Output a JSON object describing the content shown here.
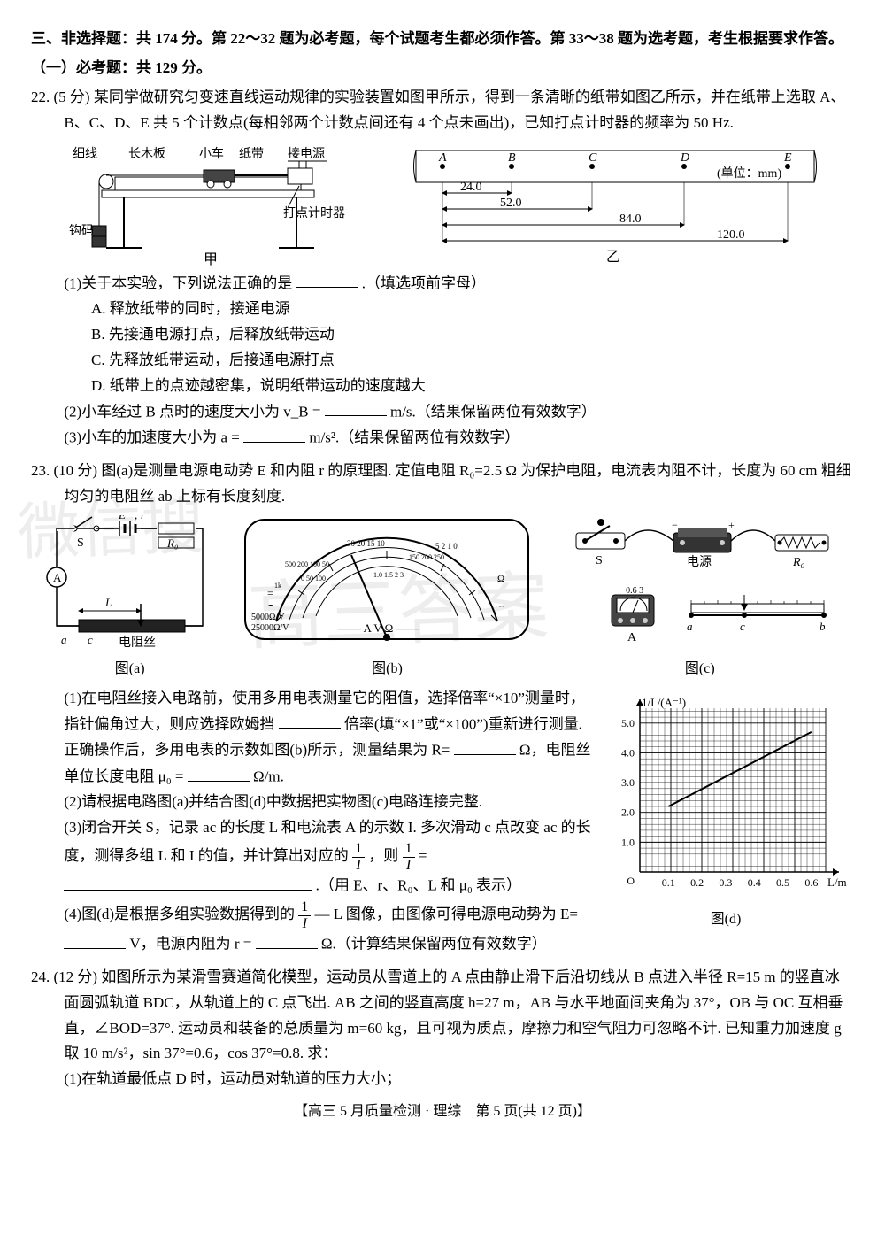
{
  "header": {
    "part3": "三、非选择题：共 174 分。第 22～32 题为必考题，每个试题考生都必须作答。第 33～38 题为选考题，考生根据要求作答。",
    "sub1": "（一）必考题：共 129 分。"
  },
  "q22": {
    "num": "22.",
    "score": "(5 分)",
    "stem": "某同学做研究匀变速直线运动规律的实验装置如图甲所示，得到一条清晰的纸带如图乙所示，并在纸带上选取 A、B、C、D、E 共 5 个计数点(每相邻两个计数点间还有 4 个点未画出)，已知打点计时器的频率为 50 Hz.",
    "fig1_labels": {
      "xixian": "细线",
      "changmuban": "长木板",
      "xiaoche": "小车",
      "zhidai": "纸带",
      "jiedianyuan": "接电源",
      "gouma": "钩码",
      "dadianjishiqi": "打点计时器",
      "jia": "甲"
    },
    "fig2": {
      "points": [
        "A",
        "B",
        "C",
        "D",
        "E"
      ],
      "unit": "(单位：mm)",
      "d1": "24.0",
      "d2": "52.0",
      "d3": "84.0",
      "d4": "120.0",
      "label": "乙"
    },
    "p1": "(1)关于本实验，下列说法正确的是",
    "p1_tail": ".（填选项前字母）",
    "optA": "A. 释放纸带的同时，接通电源",
    "optB": "B. 先接通电源打点，后释放纸带运动",
    "optC": "C. 先释放纸带运动，后接通电源打点",
    "optD": "D. 纸带上的点迹越密集，说明纸带运动的速度越大",
    "p2a": "(2)小车经过 B 点时的速度大小为 v_B =",
    "p2b": "m/s.（结果保留两位有效数字）",
    "p3a": "(3)小车的加速度大小为 a =",
    "p3b": "m/s².（结果保留两位有效数字）"
  },
  "q23": {
    "num": "23.",
    "score": "(10 分)",
    "stem": "图(a)是测量电源电动势 E 和内阻 r 的原理图. 定值电阻 R₀=2.5 Ω 为保护电阻，电流表内阻不计，长度为 60 cm 粗细均匀的电阻丝 ab 上标有长度刻度.",
    "figA": {
      "S": "S",
      "E": "E",
      "r": "r",
      "R0": "R₀",
      "A": "A",
      "L": "L",
      "a": "a",
      "c": "c",
      "dianzusi": "电阻丝",
      "label": "图(a)"
    },
    "figB": {
      "label": "图(b)",
      "unit_top": "5000Ω/V",
      "unit_bot": "25000Ω/V",
      "scales_text": "——  A  V  Ω  ——"
    },
    "figC": {
      "S": "S",
      "dianyuan": "电源",
      "R0": "R₀",
      "A": "A",
      "a": "a",
      "c": "c",
      "b": "b",
      "label": "图(c)"
    },
    "p1a": "(1)在电阻丝接入电路前，使用多用电表测量它的阻值，选择倍率“×10”测量时，指针偏角过大，则应选择欧姆挡",
    "p1b": "倍率(填“×1”或“×100”)重新进行测量. 正确操作后，多用电表的示数如图(b)所示，测量结果为 R=",
    "p1c": "Ω，电阻丝单位长度电阻 μ₀ =",
    "p1d": "Ω/m.",
    "p2": "(2)请根据电路图(a)并结合图(d)中数据把实物图(c)电路连接完整.",
    "p3a": "(3)闭合开关 S，记录 ac 的长度 L 和电流表 A 的示数 I. 多次滑动 c 点改变 ac 的长度，测得多组 L 和 I 的值，并计算出对应的",
    "p3b": "，则",
    "p3c": ".（用 E、r、R₀、L 和 μ₀ 表示）",
    "p4a": "(4)图(d)是根据多组实验数据得到的",
    "p4b": "— L 图像，由图像可得电源电动势为 E=",
    "p4c": "V，电源内阻为 r =",
    "p4d": "Ω.（计算结果保留两位有效数字）",
    "figD": {
      "ylabel": "1/I /(A⁻¹)",
      "xlabel": "L/m",
      "label": "图(d)",
      "yticks": [
        "1.0",
        "2.0",
        "3.0",
        "4.0",
        "5.0"
      ],
      "xticks": [
        "0.1",
        "0.2",
        "0.3",
        "0.4",
        "0.5",
        "0.6"
      ],
      "ylim": [
        0,
        5.5
      ],
      "xlim": [
        0,
        0.65
      ],
      "line_color": "#000",
      "grid_color": "#000",
      "background_color": "#ffffff",
      "p1": [
        0.1,
        2.2
      ],
      "p2": [
        0.6,
        4.7
      ]
    }
  },
  "q24": {
    "num": "24.",
    "score": "(12 分)",
    "stem": "如图所示为某滑雪赛道简化模型，运动员从雪道上的 A 点由静止滑下后沿切线从 B 点进入半径 R=15 m 的竖直冰面圆弧轨道 BDC，从轨道上的 C 点飞出. AB 之间的竖直高度 h=27 m，AB 与水平地面间夹角为 37°，OB 与 OC 互相垂直，∠BOD=37°. 运动员和装备的总质量为 m=60 kg，且可视为质点，摩擦力和空气阻力可忽略不计. 已知重力加速度 g 取 10 m/s²，sin 37°=0.6，cos 37°=0.8. 求：",
    "p1": "(1)在轨道最低点 D 时，运动员对轨道的压力大小；"
  },
  "footer": {
    "text": "【高三 5 月质量检测 · 理综　第 5 页(共 12 页)】"
  },
  "watermarks": {
    "w1": "微信搜",
    "w2": "高三答案"
  }
}
